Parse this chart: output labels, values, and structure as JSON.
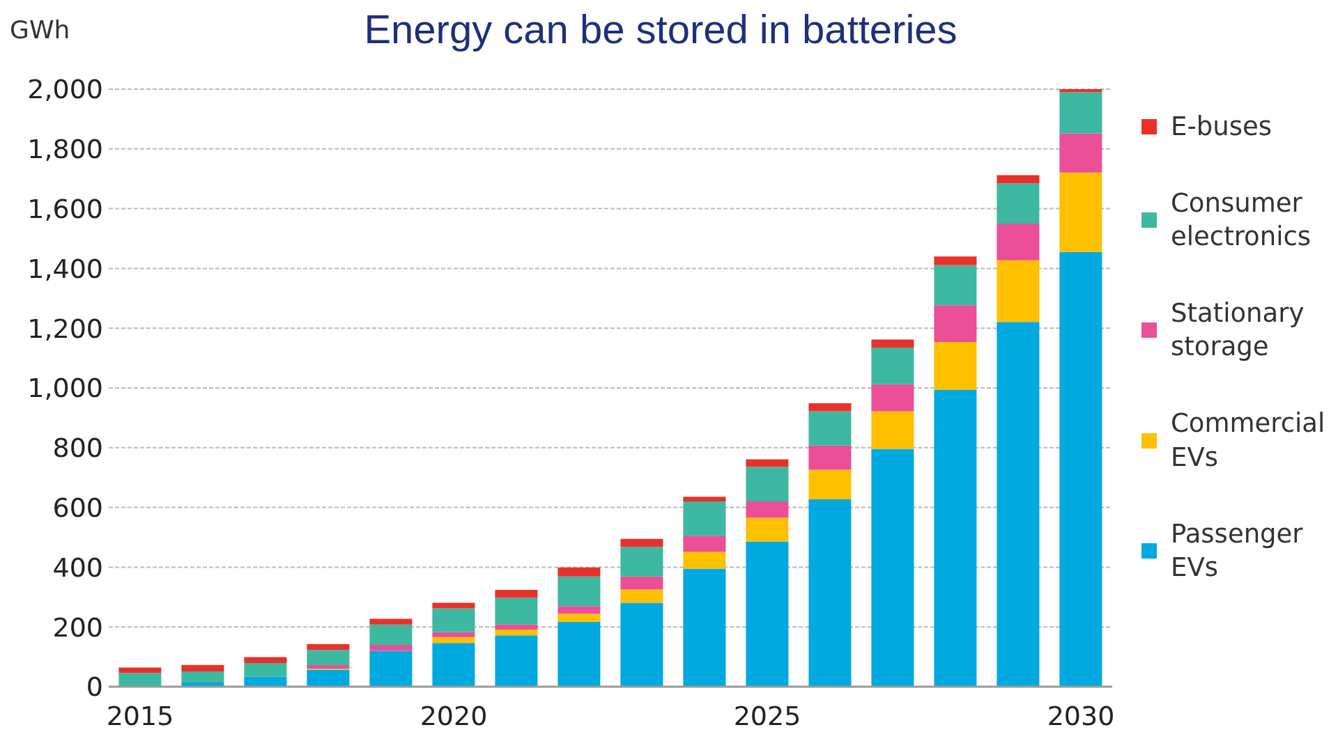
{
  "chart_data": {
    "type": "bar",
    "title": "Energy can be stored in batteries",
    "ylabel": "GWh",
    "stacked": true,
    "categories": [
      "2015",
      null,
      null,
      null,
      null,
      "2020",
      null,
      null,
      null,
      null,
      "2025",
      null,
      null,
      null,
      null,
      "2030"
    ],
    "series": [
      {
        "name": "Passenger EVs",
        "color": "#00a9e0",
        "values": [
          null,
          14,
          34,
          57,
          120,
          146,
          172,
          217,
          281,
          395,
          486,
          627,
          796,
          994,
          1221,
          1455
        ]
      },
      {
        "name": "Commercial EVs",
        "color": "#ffc000",
        "values": [
          0,
          0,
          0,
          3,
          0,
          20,
          19,
          27,
          45,
          57,
          80,
          99,
          126,
          160,
          206,
          266
        ]
      },
      {
        "name": "Stationary storage",
        "color": "#ea4f98",
        "values": [
          null,
          null,
          null,
          12,
          20,
          17,
          17,
          26,
          43,
          53,
          54,
          81,
          90,
          123,
          123,
          131
        ]
      },
      {
        "name": "Consumer electronics",
        "color": "#3cb9a0",
        "values": [
          46,
          37,
          45,
          51,
          68,
          79,
          90,
          99,
          99,
          115,
          116,
          115,
          123,
          134,
          135,
          138
        ]
      },
      {
        "name": "E-buses",
        "color": "#e8312a",
        "values": [
          18,
          22,
          20,
          20,
          19,
          19,
          26,
          30,
          27,
          16,
          25,
          27,
          27,
          29,
          27,
          10
        ]
      }
    ],
    "ylim": [
      0,
      2000
    ],
    "yticks": [
      0,
      200,
      400,
      600,
      800,
      {
        "value": 1000,
        "label": "1,000"
      },
      {
        "value": 1200,
        "label": "1,200"
      },
      {
        "value": 1400,
        "label": "1,400"
      },
      {
        "value": 1600,
        "label": "1,600"
      },
      {
        "value": 1800,
        "label": "1,800"
      },
      {
        "value": 2000,
        "label": "2,000"
      }
    ],
    "grid": "y",
    "legend": "right"
  }
}
